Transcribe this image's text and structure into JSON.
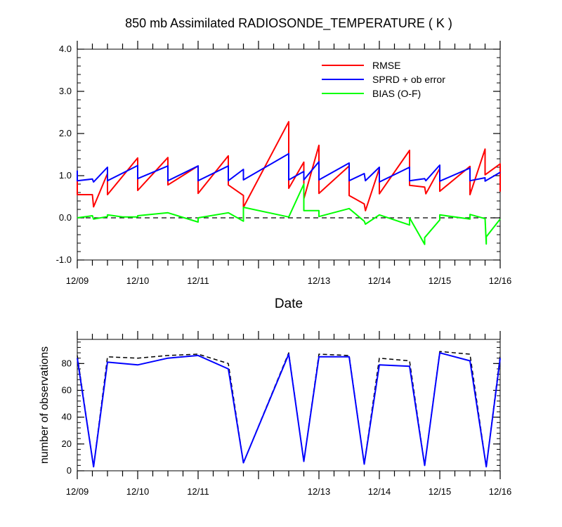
{
  "chart_data": [
    {
      "type": "line",
      "title": "850 mb Assimilated RADIOSONDE_TEMPERATURE ( K )",
      "xlabel": "Date",
      "ylabel": "",
      "x_tick_labels": [
        "12/09",
        "12/10",
        "12/11",
        "12/13",
        "12/14",
        "12/15",
        "12/16"
      ],
      "x_tick_values": [
        0,
        1,
        2,
        4,
        5,
        6,
        7
      ],
      "xlim": [
        0,
        7
      ],
      "ylim": [
        -1.0,
        4.0
      ],
      "y_tick_labels": [
        "-1.0",
        "0.0",
        "1.0",
        "2.0",
        "3.0",
        "4.0"
      ],
      "y_tick_values": [
        -1,
        0,
        1,
        2,
        3,
        4
      ],
      "reference_line": {
        "y": 0.0,
        "style": "dashed",
        "color": "#000000"
      },
      "legend_position": "top-right",
      "series": [
        {
          "name": "RMSE",
          "color": "#ff0000",
          "points": [
            [
              0,
              1.0
            ],
            [
              0,
              0.55
            ],
            [
              0.25,
              0.55
            ],
            [
              0.27,
              0.26
            ],
            [
              0.5,
              1.05
            ],
            [
              0.5,
              0.55
            ],
            [
              1.0,
              1.42
            ],
            [
              1.0,
              0.65
            ],
            [
              1.5,
              1.43
            ],
            [
              1.5,
              0.78
            ],
            [
              2.0,
              1.23
            ],
            [
              2.0,
              0.58
            ],
            [
              2.5,
              1.47
            ],
            [
              2.5,
              0.78
            ],
            [
              2.75,
              0.53
            ],
            [
              2.75,
              0.25
            ],
            [
              3.5,
              2.28
            ],
            [
              3.5,
              0.7
            ],
            [
              3.75,
              1.32
            ],
            [
              3.75,
              0.45
            ],
            [
              4.0,
              1.72
            ],
            [
              4.0,
              0.58
            ],
            [
              4.5,
              1.23
            ],
            [
              4.5,
              0.53
            ],
            [
              4.75,
              0.33
            ],
            [
              4.77,
              0.17
            ],
            [
              5.0,
              1.17
            ],
            [
              5.0,
              0.57
            ],
            [
              5.5,
              1.6
            ],
            [
              5.5,
              0.77
            ],
            [
              5.75,
              0.73
            ],
            [
              5.77,
              0.57
            ],
            [
              6.0,
              1.17
            ],
            [
              6.0,
              0.63
            ],
            [
              6.5,
              1.22
            ],
            [
              6.5,
              0.55
            ],
            [
              6.75,
              1.63
            ],
            [
              6.75,
              1.02
            ],
            [
              7.0,
              1.28
            ],
            [
              7.0,
              0.62
            ]
          ]
        },
        {
          "name": "SPRD + ob error",
          "color": "#0000ff",
          "points": [
            [
              0,
              1.12
            ],
            [
              0,
              0.88
            ],
            [
              0.25,
              0.92
            ],
            [
              0.27,
              0.85
            ],
            [
              0.5,
              1.2
            ],
            [
              0.5,
              0.88
            ],
            [
              1.0,
              1.24
            ],
            [
              1.0,
              0.93
            ],
            [
              1.5,
              1.23
            ],
            [
              1.5,
              0.88
            ],
            [
              2.0,
              1.23
            ],
            [
              2.0,
              0.88
            ],
            [
              2.5,
              1.23
            ],
            [
              2.5,
              0.88
            ],
            [
              2.75,
              1.15
            ],
            [
              2.75,
              0.9
            ],
            [
              3.5,
              1.52
            ],
            [
              3.5,
              0.9
            ],
            [
              3.75,
              1.1
            ],
            [
              3.75,
              0.9
            ],
            [
              4.0,
              1.33
            ],
            [
              4.0,
              0.9
            ],
            [
              4.5,
              1.3
            ],
            [
              4.5,
              0.88
            ],
            [
              4.75,
              1.05
            ],
            [
              4.77,
              0.88
            ],
            [
              5.0,
              1.2
            ],
            [
              5.0,
              0.85
            ],
            [
              5.5,
              1.2
            ],
            [
              5.5,
              0.88
            ],
            [
              5.75,
              0.93
            ],
            [
              5.77,
              0.88
            ],
            [
              6.0,
              1.25
            ],
            [
              6.0,
              0.87
            ],
            [
              6.5,
              1.18
            ],
            [
              6.5,
              0.88
            ],
            [
              6.75,
              0.95
            ],
            [
              6.75,
              0.87
            ],
            [
              7.0,
              1.08
            ]
          ]
        },
        {
          "name": "BIAS (O-F)",
          "color": "#00ff00",
          "points": [
            [
              0,
              0.0
            ],
            [
              0.25,
              0.05
            ],
            [
              0.27,
              -0.03
            ],
            [
              0.5,
              0.03
            ],
            [
              0.5,
              0.07
            ],
            [
              0.75,
              0.02
            ],
            [
              1.0,
              0.02
            ],
            [
              1.0,
              0.05
            ],
            [
              1.5,
              0.12
            ],
            [
              2.0,
              -0.1
            ],
            [
              2.0,
              0.0
            ],
            [
              2.5,
              0.12
            ],
            [
              2.75,
              -0.08
            ],
            [
              2.75,
              0.25
            ],
            [
              3.5,
              0.02
            ],
            [
              3.75,
              0.8
            ],
            [
              3.75,
              0.17
            ],
            [
              4.0,
              0.17
            ],
            [
              4.0,
              0.03
            ],
            [
              4.5,
              0.22
            ],
            [
              4.75,
              -0.08
            ],
            [
              4.77,
              -0.15
            ],
            [
              5.0,
              0.07
            ],
            [
              5.5,
              -0.17
            ],
            [
              5.5,
              0.0
            ],
            [
              5.75,
              -0.63
            ],
            [
              5.75,
              -0.47
            ],
            [
              6.0,
              -0.05
            ],
            [
              6.0,
              0.07
            ],
            [
              6.5,
              -0.03
            ],
            [
              6.5,
              0.08
            ],
            [
              6.75,
              -0.02
            ],
            [
              6.77,
              -0.62
            ],
            [
              6.77,
              -0.45
            ],
            [
              7.0,
              -0.03
            ]
          ]
        }
      ]
    },
    {
      "type": "line",
      "title": "",
      "xlabel": "",
      "ylabel": "number of observations",
      "x_tick_labels": [
        "12/09",
        "12/10",
        "12/11",
        "12/13",
        "12/14",
        "12/15",
        "12/16"
      ],
      "x_tick_values": [
        0,
        1,
        2,
        4,
        5,
        6,
        7
      ],
      "xlim": [
        0,
        7
      ],
      "ylim": [
        0,
        98
      ],
      "y_tick_labels": [
        "0",
        "20",
        "40",
        "60",
        "80"
      ],
      "y_tick_values": [
        0,
        20,
        40,
        60,
        80
      ],
      "series": [
        {
          "name": "",
          "style": "dashed",
          "color": "#000000",
          "points": [
            [
              0,
              86
            ],
            [
              0.27,
              3
            ],
            [
              0.5,
              85
            ],
            [
              1.0,
              84
            ],
            [
              1.5,
              86
            ],
            [
              2.0,
              87
            ],
            [
              2.5,
              80
            ],
            [
              2.75,
              6
            ],
            [
              3.5,
              88
            ],
            [
              3.75,
              7
            ],
            [
              4.0,
              87
            ],
            [
              4.5,
              86
            ],
            [
              4.75,
              5
            ],
            [
              5.0,
              84
            ],
            [
              5.5,
              82
            ],
            [
              5.75,
              4
            ],
            [
              6.0,
              89
            ],
            [
              6.5,
              87
            ],
            [
              6.77,
              3
            ],
            [
              7.0,
              86
            ]
          ]
        },
        {
          "name": "",
          "style": "solid",
          "color": "#0000ff",
          "points": [
            [
              0,
              84
            ],
            [
              0.27,
              3
            ],
            [
              0.5,
              81
            ],
            [
              1.0,
              79
            ],
            [
              1.5,
              84
            ],
            [
              2.0,
              86
            ],
            [
              2.5,
              76
            ],
            [
              2.75,
              6
            ],
            [
              3.5,
              87
            ],
            [
              3.75,
              7
            ],
            [
              4.0,
              85
            ],
            [
              4.5,
              85
            ],
            [
              4.75,
              5
            ],
            [
              5.0,
              79
            ],
            [
              5.5,
              78
            ],
            [
              5.75,
              4
            ],
            [
              6.0,
              88
            ],
            [
              6.5,
              82
            ],
            [
              6.77,
              3
            ],
            [
              7.0,
              84
            ]
          ]
        }
      ]
    }
  ]
}
